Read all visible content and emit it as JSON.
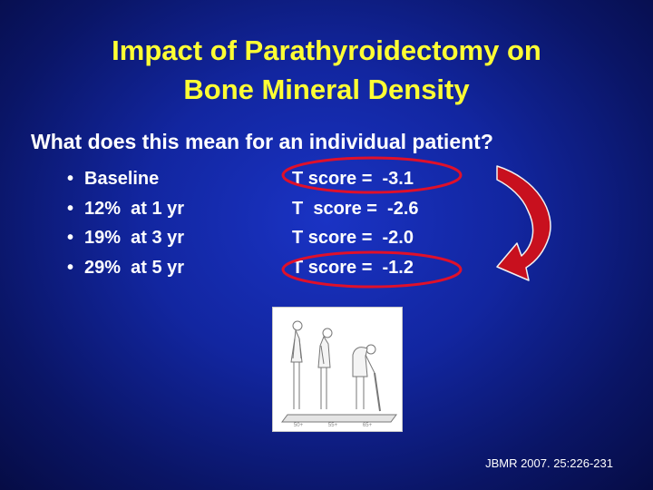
{
  "slide": {
    "title_line1": "Impact of Parathyroidectomy on",
    "title_line2": "Bone Mineral Density",
    "subtitle": "What does this mean for an individual patient?",
    "bullets": [
      {
        "marker": "•",
        "text": "Baseline"
      },
      {
        "marker": "•",
        "text": "12%  at 1 yr"
      },
      {
        "marker": "•",
        "text": "19%  at 3 yr"
      },
      {
        "marker": "•",
        "text": "29%  at 5 yr"
      }
    ],
    "t_scores": [
      "T score =  -3.1",
      "T  score =  -2.6",
      "T score =  -2.0",
      "T score =  -1.2"
    ],
    "figure_labels": [
      "50+",
      "55+",
      "65+"
    ],
    "citation": "JBMR 2007. 25:226-231"
  },
  "colors": {
    "title": "#ffff33",
    "body_text": "#ffffff",
    "highlight_ellipse": "#e0102a",
    "arrow": "#c8101e",
    "background": "#1226a0"
  }
}
